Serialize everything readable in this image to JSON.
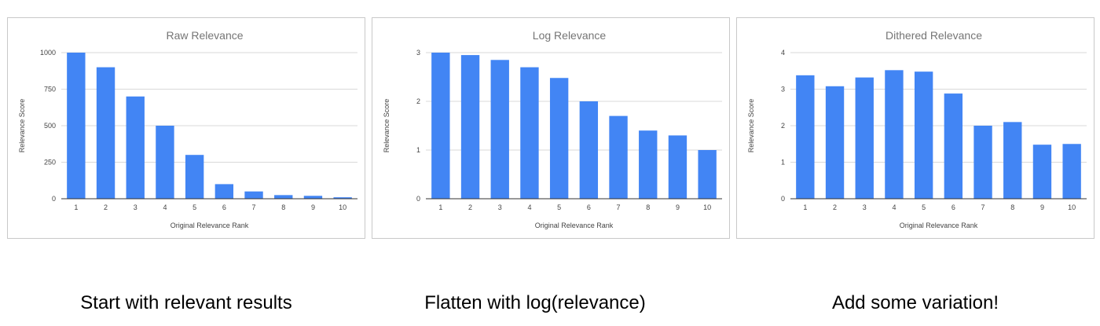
{
  "theme": {
    "bar_color": "#4285f4",
    "grid_color": "#d9d9d9",
    "axis_color": "#333333",
    "border_color": "#c9c9c9"
  },
  "captions": [
    "Start with relevant results",
    "Flatten with log(relevance)",
    "Add some variation!"
  ],
  "chart_data": [
    {
      "type": "bar",
      "title": "Raw Relevance",
      "xlabel": "Original Relevance Rank",
      "ylabel": "Relevance Score",
      "categories": [
        "1",
        "2",
        "3",
        "4",
        "5",
        "6",
        "7",
        "8",
        "9",
        "10"
      ],
      "values": [
        1000,
        900,
        700,
        500,
        300,
        100,
        50,
        25,
        20,
        10
      ],
      "ylim": [
        0,
        1000
      ],
      "yticks": [
        0,
        250,
        500,
        750,
        1000
      ],
      "grid": true
    },
    {
      "type": "bar",
      "title": "Log Relevance",
      "xlabel": "Original Relevance Rank",
      "ylabel": "Relevance Score",
      "categories": [
        "1",
        "2",
        "3",
        "4",
        "5",
        "6",
        "7",
        "8",
        "9",
        "10"
      ],
      "values": [
        3,
        2.95,
        2.85,
        2.7,
        2.48,
        2,
        1.7,
        1.4,
        1.3,
        1
      ],
      "ylim": [
        0,
        3
      ],
      "yticks": [
        0,
        1,
        2,
        3
      ],
      "grid": true
    },
    {
      "type": "bar",
      "title": "Dithered Relevance",
      "xlabel": "Original Relevance Rank",
      "ylabel": "Relevance Score",
      "categories": [
        "1",
        "2",
        "3",
        "4",
        "5",
        "6",
        "7",
        "8",
        "9",
        "10"
      ],
      "values": [
        3.38,
        3.08,
        3.32,
        3.52,
        3.48,
        2.88,
        2,
        2.1,
        1.48,
        1.5
      ],
      "ylim": [
        0,
        4
      ],
      "yticks": [
        0,
        1,
        2,
        3,
        4
      ],
      "grid": true
    }
  ]
}
